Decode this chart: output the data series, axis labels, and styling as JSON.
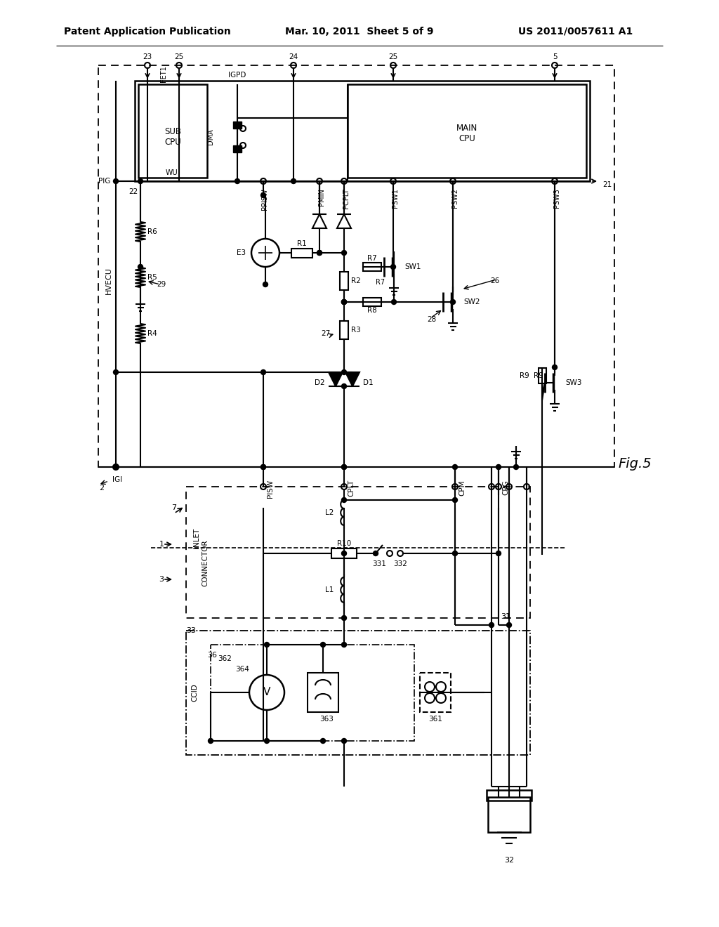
{
  "header_left": "Patent Application Publication",
  "header_center": "Mar. 10, 2011  Sheet 5 of 9",
  "header_right": "US 2011/0057611 A1",
  "fig_label": "Fig.5",
  "bg_color": "#ffffff"
}
